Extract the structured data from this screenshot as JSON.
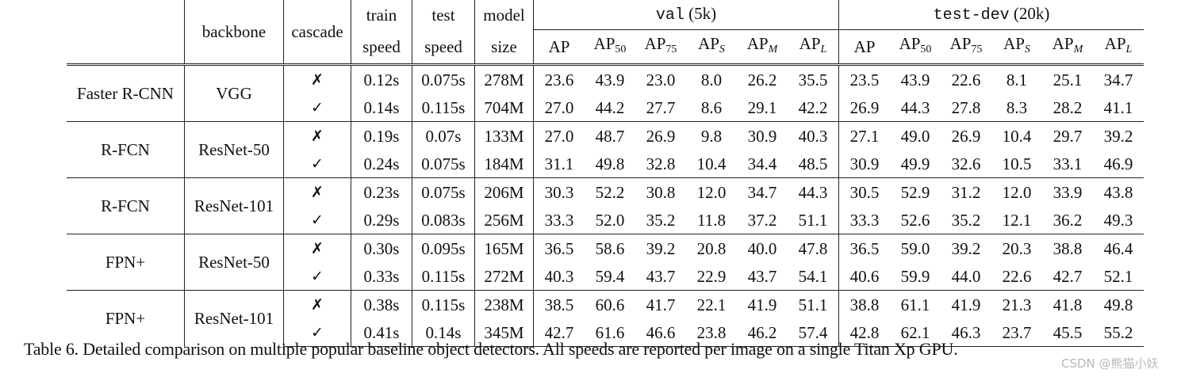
{
  "table": {
    "header": {
      "backbone": "backbone",
      "cascade": "cascade",
      "train_speed": [
        "train",
        "speed"
      ],
      "test_speed": [
        "test",
        "speed"
      ],
      "model_size": [
        "model",
        "size"
      ],
      "val_group": {
        "name": "val",
        "suffix": "(5k)"
      },
      "testdev_group": {
        "name": "test-dev",
        "suffix": "(20k)"
      },
      "metrics": [
        {
          "base": "AP",
          "sub": ""
        },
        {
          "base": "AP",
          "sub": "50"
        },
        {
          "base": "AP",
          "sub": "75"
        },
        {
          "base": "AP",
          "sub": "S"
        },
        {
          "base": "AP",
          "sub": "M"
        },
        {
          "base": "AP",
          "sub": "L"
        }
      ]
    },
    "groups": [
      {
        "detector": "Faster R-CNN",
        "backbone": "VGG",
        "rows": [
          {
            "cascade": "✗",
            "train": "0.12s",
            "test": "0.075s",
            "size": "278M",
            "val": [
              "23.6",
              "43.9",
              "23.0",
              "8.0",
              "26.2",
              "35.5"
            ],
            "testdev": [
              "23.5",
              "43.9",
              "22.6",
              "8.1",
              "25.1",
              "34.7"
            ]
          },
          {
            "cascade": "✓",
            "train": "0.14s",
            "test": "0.115s",
            "size": "704M",
            "val": [
              "27.0",
              "44.2",
              "27.7",
              "8.6",
              "29.1",
              "42.2"
            ],
            "testdev": [
              "26.9",
              "44.3",
              "27.8",
              "8.3",
              "28.2",
              "41.1"
            ]
          }
        ]
      },
      {
        "detector": "R-FCN",
        "backbone": "ResNet-50",
        "rows": [
          {
            "cascade": "✗",
            "train": "0.19s",
            "test": "0.07s",
            "size": "133M",
            "val": [
              "27.0",
              "48.7",
              "26.9",
              "9.8",
              "30.9",
              "40.3"
            ],
            "testdev": [
              "27.1",
              "49.0",
              "26.9",
              "10.4",
              "29.7",
              "39.2"
            ]
          },
          {
            "cascade": "✓",
            "train": "0.24s",
            "test": "0.075s",
            "size": "184M",
            "val": [
              "31.1",
              "49.8",
              "32.8",
              "10.4",
              "34.4",
              "48.5"
            ],
            "testdev": [
              "30.9",
              "49.9",
              "32.6",
              "10.5",
              "33.1",
              "46.9"
            ]
          }
        ]
      },
      {
        "detector": "R-FCN",
        "backbone": "ResNet-101",
        "rows": [
          {
            "cascade": "✗",
            "train": "0.23s",
            "test": "0.075s",
            "size": "206M",
            "val": [
              "30.3",
              "52.2",
              "30.8",
              "12.0",
              "34.7",
              "44.3"
            ],
            "testdev": [
              "30.5",
              "52.9",
              "31.2",
              "12.0",
              "33.9",
              "43.8"
            ]
          },
          {
            "cascade": "✓",
            "train": "0.29s",
            "test": "0.083s",
            "size": "256M",
            "val": [
              "33.3",
              "52.0",
              "35.2",
              "11.8",
              "37.2",
              "51.1"
            ],
            "testdev": [
              "33.3",
              "52.6",
              "35.2",
              "12.1",
              "36.2",
              "49.3"
            ]
          }
        ]
      },
      {
        "detector": "FPN+",
        "backbone": "ResNet-50",
        "rows": [
          {
            "cascade": "✗",
            "train": "0.30s",
            "test": "0.095s",
            "size": "165M",
            "val": [
              "36.5",
              "58.6",
              "39.2",
              "20.8",
              "40.0",
              "47.8"
            ],
            "testdev": [
              "36.5",
              "59.0",
              "39.2",
              "20.3",
              "38.8",
              "46.4"
            ]
          },
          {
            "cascade": "✓",
            "train": "0.33s",
            "test": "0.115s",
            "size": "272M",
            "val": [
              "40.3",
              "59.4",
              "43.7",
              "22.9",
              "43.7",
              "54.1"
            ],
            "testdev": [
              "40.6",
              "59.9",
              "44.0",
              "22.6",
              "42.7",
              "52.1"
            ]
          }
        ]
      },
      {
        "detector": "FPN+",
        "backbone": "ResNet-101",
        "rows": [
          {
            "cascade": "✗",
            "train": "0.38s",
            "test": "0.115s",
            "size": "238M",
            "val": [
              "38.5",
              "60.6",
              "41.7",
              "22.1",
              "41.9",
              "51.1"
            ],
            "testdev": [
              "38.8",
              "61.1",
              "41.9",
              "21.3",
              "41.8",
              "49.8"
            ]
          },
          {
            "cascade": "✓",
            "train": "0.41s",
            "test": "0.14s",
            "size": "345M",
            "val": [
              "42.7",
              "61.6",
              "46.6",
              "23.8",
              "46.2",
              "57.4"
            ],
            "testdev": [
              "42.8",
              "62.1",
              "46.3",
              "23.7",
              "45.5",
              "55.2"
            ]
          }
        ]
      }
    ]
  },
  "caption": "Table 6. Detailed comparison on multiple popular baseline object detectors. All speeds are reported per image on a single Titan Xp GPU.",
  "watermark": "CSDN @熊猫小妖"
}
